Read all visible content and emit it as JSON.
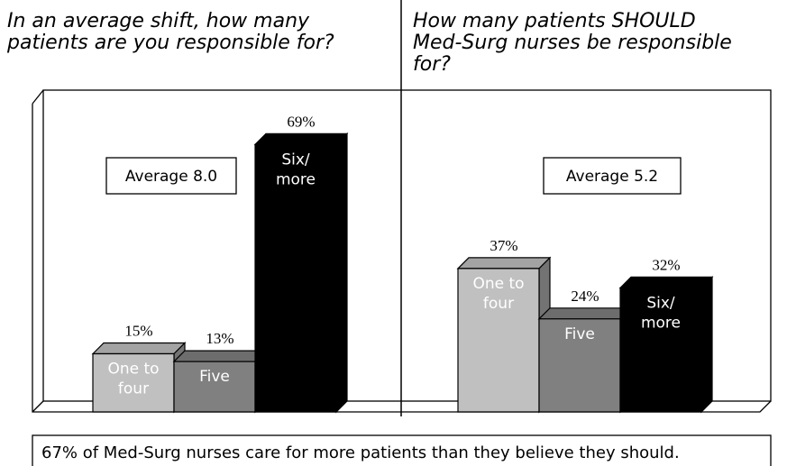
{
  "chart_data": [
    {
      "type": "bar",
      "title": "In an average shift, how many\npatients are you responsible for?",
      "annotation": "Average 8.0",
      "categories": [
        "One to\nfour",
        "Five",
        "Six/\nmore"
      ],
      "values": [
        15,
        13,
        69
      ],
      "value_labels": [
        "15%",
        "13%",
        "69%"
      ],
      "colors": [
        "#c0c0c0",
        "#808080",
        "#000000"
      ]
    },
    {
      "type": "bar",
      "title": "How many patients SHOULD\nMed-Surg nurses be responsible\nfor?",
      "annotation": "Average 5.2",
      "categories": [
        "One to\nfour",
        "Five",
        "Six/\nmore"
      ],
      "values": [
        37,
        24,
        32
      ],
      "value_labels": [
        "37%",
        "24%",
        "32%"
      ],
      "colors": [
        "#c0c0c0",
        "#808080",
        "#000000"
      ]
    }
  ],
  "footnote": "67% of Med-Surg nurses care for more patients than they believe they should."
}
